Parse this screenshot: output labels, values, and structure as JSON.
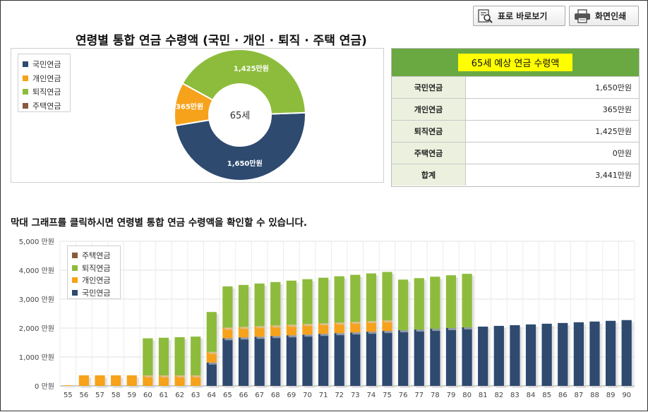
{
  "toolbar": {
    "table_view_label": "표로 바로보기",
    "print_label": "화면인쇄",
    "table_icon": "table-magnifier-icon",
    "print_icon": "printer-icon"
  },
  "title": "연령별 통합 연금 수령액 (국민 · 개인 · 퇴직 · 주택 연금)",
  "colors": {
    "national": "#2e4a6f",
    "personal": "#f7a21b",
    "retirement": "#8dbc3c",
    "housing": "#8a5a3c",
    "summary_header": "#6aa842",
    "summary_highlight": "#ffff00",
    "summary_label_bg": "#ebf1de"
  },
  "donut": {
    "center_label": "65세",
    "legend": [
      "국민연금",
      "개인연금",
      "퇴직연금",
      "주택연금"
    ],
    "slices": [
      {
        "name": "국민연금",
        "value": 1650,
        "label": "1,650만원"
      },
      {
        "name": "개인연금",
        "value": 365,
        "label": "365만원"
      },
      {
        "name": "퇴직연금",
        "value": 1425,
        "label": "1,425만원"
      },
      {
        "name": "주택연금",
        "value": 0,
        "label": ""
      }
    ]
  },
  "summary": {
    "header": "65세 예상 연금 수령액",
    "rows": [
      {
        "label": "국민연금",
        "value": "1,650만원"
      },
      {
        "label": "개인연금",
        "value": "365만원"
      },
      {
        "label": "퇴직연금",
        "value": "1,425만원"
      },
      {
        "label": "주택연금",
        "value": "0만원"
      },
      {
        "label": "합계",
        "value": "3,441만원"
      }
    ]
  },
  "bar_caption": "막대 그래프를 클릭하시면 연령별 통합 연금 수령액을 확인할 수 있습니다.",
  "chart_data": {
    "type": "bar",
    "stacked": true,
    "ylim": [
      0,
      5000
    ],
    "yticks": [
      "0 만원",
      "1,000 만원",
      "2,000 만원",
      "3,000 만원",
      "4,000 만원",
      "5,000 만원"
    ],
    "grid": true,
    "legend_position": "top-left",
    "legend": [
      "주택연금",
      "퇴직연금",
      "개인연금",
      "국민연금"
    ],
    "categories": [
      "55",
      "56",
      "57",
      "58",
      "59",
      "60",
      "61",
      "62",
      "63",
      "64",
      "65",
      "66",
      "67",
      "68",
      "69",
      "70",
      "71",
      "72",
      "73",
      "74",
      "75",
      "76",
      "77",
      "78",
      "79",
      "80",
      "81",
      "82",
      "83",
      "84",
      "85",
      "86",
      "87",
      "88",
      "89",
      "90"
    ],
    "series": [
      {
        "name": "국민연금",
        "values": [
          0,
          0,
          0,
          0,
          0,
          0,
          0,
          0,
          0,
          810,
          1650,
          1675,
          1700,
          1725,
          1750,
          1775,
          1800,
          1825,
          1850,
          1875,
          1900,
          1925,
          1950,
          1975,
          2000,
          2025,
          2050,
          2075,
          2100,
          2125,
          2150,
          2175,
          2200,
          2225,
          2250,
          2275
        ]
      },
      {
        "name": "개인연금",
        "values": [
          20,
          365,
          365,
          365,
          365,
          365,
          365,
          365,
          365,
          365,
          365,
          365,
          365,
          365,
          365,
          365,
          365,
          365,
          365,
          365,
          365,
          0,
          0,
          0,
          0,
          0,
          0,
          0,
          0,
          0,
          0,
          0,
          0,
          0,
          0,
          0
        ]
      },
      {
        "name": "퇴직연금",
        "values": [
          0,
          0,
          0,
          0,
          0,
          1280,
          1300,
          1320,
          1340,
          1380,
          1425,
          1450,
          1475,
          1500,
          1525,
          1550,
          1575,
          1600,
          1625,
          1650,
          1675,
          1750,
          1775,
          1800,
          1825,
          1850,
          0,
          0,
          0,
          0,
          0,
          0,
          0,
          0,
          0,
          0
        ]
      },
      {
        "name": "주택연금",
        "values": [
          0,
          0,
          0,
          0,
          0,
          0,
          0,
          0,
          0,
          0,
          0,
          0,
          0,
          0,
          0,
          0,
          0,
          0,
          0,
          0,
          0,
          0,
          0,
          0,
          0,
          0,
          0,
          0,
          0,
          0,
          0,
          0,
          0,
          0,
          0,
          0
        ]
      }
    ]
  }
}
